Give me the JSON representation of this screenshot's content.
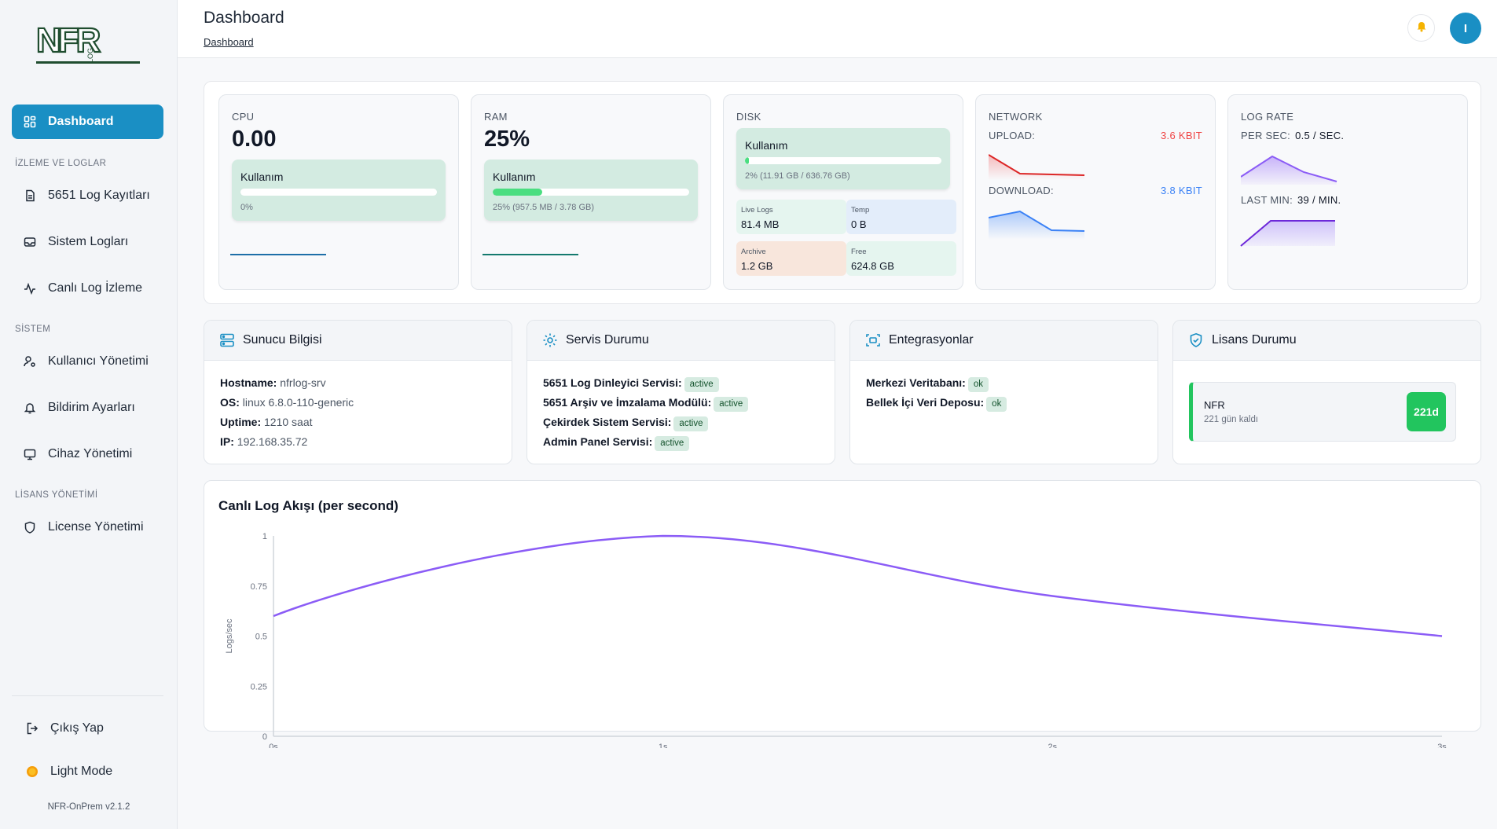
{
  "app": {
    "version": "NFR-OnPrem v2.1.2",
    "logo_main": "NFR",
    "logo_sub": "LOG"
  },
  "sidebar": {
    "dashboard": "Dashboard",
    "section_monitoring": "İZLEME VE LOGLAR",
    "log_records": "5651 Log Kayıtları",
    "system_logs": "Sistem Logları",
    "live_logs": "Canlı Log İzleme",
    "section_system": "SİSTEM",
    "users": "Kullanıcı Yönetimi",
    "notifications": "Bildirim Ayarları",
    "devices": "Cihaz Yönetimi",
    "section_license": "LİSANS YÖNETİMİ",
    "license": "License Yönetimi",
    "logout": "Çıkış Yap",
    "theme": "Light Mode"
  },
  "header": {
    "title": "Dashboard",
    "breadcrumb": "Dashboard",
    "avatar_initial": "I"
  },
  "metrics": {
    "cpu": {
      "label": "CPU",
      "value": "0.00",
      "usage_label": "Kullanım",
      "usage_text": "0%",
      "usage_fraction": 0.0
    },
    "ram": {
      "label": "RAM",
      "value": "25%",
      "usage_label": "Kullanım",
      "usage_text": "25%  (957.5 MB / 3.78 GB)",
      "usage_fraction": 0.25
    },
    "disk": {
      "label": "DISK",
      "usage_label": "Kullanım",
      "usage_text": "2%  (11.91 GB / 636.76 GB)",
      "usage_fraction": 0.02,
      "live_logs_label": "Live Logs",
      "live_logs": "81.4 MB",
      "temp_label": "Temp",
      "temp": "0 B",
      "archive_label": "Archive",
      "archive": "1.2 GB",
      "free_label": "Free",
      "free": "624.8 GB"
    },
    "network": {
      "label": "NETWORK",
      "upload_label": "UPLOAD:",
      "upload": "3.6 KBIT",
      "download_label": "DOWNLOAD:",
      "download": "3.8 KBIT"
    },
    "lograte": {
      "label": "LOG RATE",
      "per_sec_label": "PER SEC:",
      "per_sec": "0.5 / SEC.",
      "last_min_label": "LAST MIN:",
      "last_min": "39 / MIN."
    }
  },
  "server": {
    "title": "Sunucu Bilgisi",
    "hostname_label": "Hostname:",
    "hostname": "nfrlog-srv",
    "os_label": "OS:",
    "os": "linux 6.8.0-110-generic",
    "uptime_label": "Uptime:",
    "uptime": "1210 saat",
    "ip_label": "IP:",
    "ip": "192.168.35.72"
  },
  "services": {
    "title": "Servis Durumu",
    "items": [
      {
        "name": "5651 Log Dinleyici Servisi:",
        "status": "active"
      },
      {
        "name": "5651 Arşiv ve İmzalama Modülü:",
        "status": "active"
      },
      {
        "name": "Çekirdek Sistem Servisi:",
        "status": "active"
      },
      {
        "name": "Admin Panel Servisi:",
        "status": "active"
      }
    ]
  },
  "integrations": {
    "title": "Entegrasyonlar",
    "items": [
      {
        "name": "Merkezi Veritabanı:",
        "status": "ok"
      },
      {
        "name": "Bellek İçi Veri Deposu:",
        "status": "ok"
      }
    ]
  },
  "license": {
    "title": "Lisans Durumu",
    "name": "NFR",
    "days_text": "221 gün kaldı",
    "chip": "221d"
  },
  "colors": {
    "accent": "#1a8fc4",
    "success": "#22c55e",
    "line": "#8b5cf6",
    "upload": "#ef4444",
    "download": "#3b82f6"
  },
  "chart_data": {
    "type": "line",
    "title": "Canlı Log Akışı (per second)",
    "ylabel": "Logs/sec",
    "x": [
      "0s",
      "1s",
      "2s",
      "3s"
    ],
    "series": [
      {
        "values": [
          0.6,
          1.0,
          0.7,
          0.5
        ]
      }
    ],
    "ylim": [
      0,
      1
    ],
    "yticks": [
      "0",
      "0.25",
      "0.5",
      "0.75",
      "1"
    ],
    "grid": false
  }
}
